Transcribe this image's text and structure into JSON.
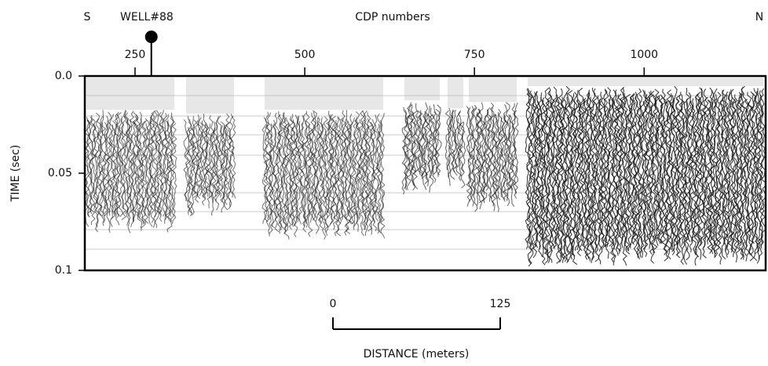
{
  "figure": {
    "x_axis": {
      "label": "CDP numbers",
      "xlim": [
        176,
        1179
      ],
      "xticks": [
        250,
        500,
        750,
        1000
      ]
    },
    "y_axis": {
      "label": "TIME (sec)",
      "ylim": [
        0,
        0.1
      ],
      "yticks": [
        {
          "value": 0,
          "label": "0.0"
        },
        0.05,
        0.1
      ]
    },
    "direction_labels": [
      "S",
      "N"
    ],
    "well": {
      "label": "WELL#88",
      "cdp": 274
    },
    "scale_bar": {
      "label": "DISTANCE (meters)",
      "ticks": [
        0,
        125
      ]
    }
  }
}
